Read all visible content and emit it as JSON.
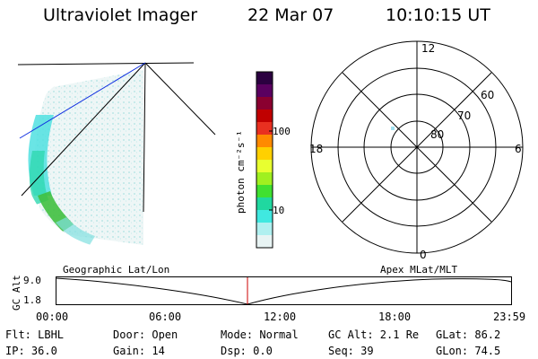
{
  "header": {
    "title": "Ultraviolet Imager",
    "date": "22 Mar 07",
    "time": "10:10:15 UT"
  },
  "colorbar": {
    "unit_label": "photon cm⁻²s⁻¹",
    "ticks": [
      "100",
      "10"
    ],
    "colors": [
      "#2b0040",
      "#5a0060",
      "#8a0030",
      "#c00000",
      "#e83020",
      "#ff8a00",
      "#ffd000",
      "#e8ff30",
      "#a0f020",
      "#40e030",
      "#20d8a0",
      "#40e8e0",
      "#b0f0f0",
      "#e8f4f4"
    ]
  },
  "polar": {
    "labels": [
      "12",
      "60",
      "70",
      "80",
      "18",
      "6",
      "0"
    ]
  },
  "strip": {
    "left_label": "Geographic Lat/Lon",
    "right_label": "Apex MLat/MLT",
    "axis_title": "GC Alt",
    "y_ticks": [
      "9.0",
      "1.8"
    ],
    "x_ticks": [
      "00:00",
      "06:00",
      "12:00",
      "18:00",
      "23:59"
    ],
    "marker_color": "#cc0000"
  },
  "footer": {
    "flt": "Flt: LBHL",
    "ip": "IP: 36.0",
    "door": "Door: Open",
    "gain": "Gain: 14",
    "mode": "Mode: Normal",
    "dsp": "Dsp:     0.0",
    "gcalt": "GC Alt: 2.1 Re",
    "seq": "Seq: 39",
    "glat": "GLat:   86.2",
    "glon": "GLon:   74.5"
  }
}
